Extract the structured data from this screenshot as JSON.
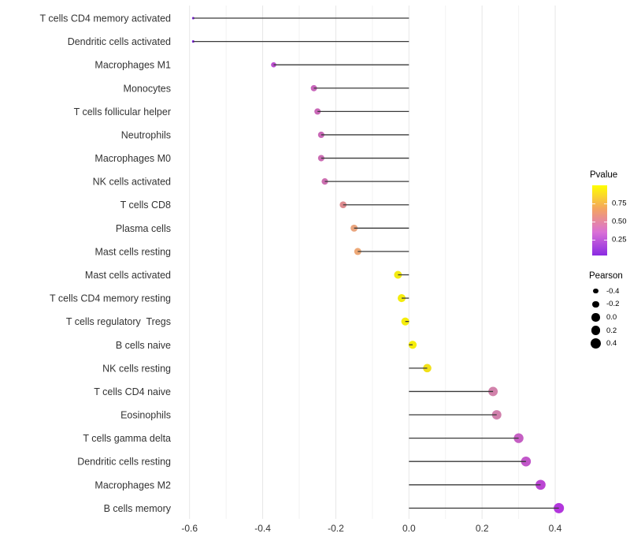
{
  "chart_data": {
    "type": "lollipop",
    "orientation": "horizontal",
    "title": "",
    "xlabel": "",
    "ylabel": "",
    "xlim": [
      -0.655,
      0.465
    ],
    "x_ticks": [
      -0.6,
      -0.4,
      -0.2,
      0.0,
      0.2,
      0.4
    ],
    "x_tick_labels": [
      "-0.6",
      "-0.4",
      "-0.2",
      "0.0",
      "0.2",
      "0.4"
    ],
    "x_minor_ticks": [
      -0.5,
      -0.3,
      -0.1,
      0.1,
      0.3
    ],
    "grid": "vertical major+minor, light gray on white",
    "baseline": 0.0,
    "rows": [
      {
        "label": "T cells CD4 memory activated",
        "pearson": -0.59,
        "pvalue": 0.01,
        "color": "#7E22DC"
      },
      {
        "label": "Dendritic cells activated",
        "pearson": -0.59,
        "pvalue": 0.01,
        "color": "#7E22DC"
      },
      {
        "label": "Macrophages M1",
        "pearson": -0.37,
        "pvalue": 0.09,
        "color": "#BC4FD0"
      },
      {
        "label": "Monocytes",
        "pearson": -0.26,
        "pvalue": 0.21,
        "color": "#C765BA"
      },
      {
        "label": "T cells follicular helper",
        "pearson": -0.25,
        "pvalue": 0.23,
        "color": "#C968B7"
      },
      {
        "label": "Neutrophils",
        "pearson": -0.24,
        "pvalue": 0.23,
        "color": "#C968B7"
      },
      {
        "label": "Macrophages M0",
        "pearson": -0.24,
        "pvalue": 0.24,
        "color": "#CB6CB3"
      },
      {
        "label": "NK cells activated",
        "pearson": -0.23,
        "pvalue": 0.25,
        "color": "#CC6FB0"
      },
      {
        "label": "T cells CD8",
        "pearson": -0.18,
        "pvalue": 0.4,
        "color": "#DD8B8F"
      },
      {
        "label": "Plasma cells",
        "pearson": -0.15,
        "pvalue": 0.5,
        "color": "#EAA57E"
      },
      {
        "label": "Mast cells resting",
        "pearson": -0.14,
        "pvalue": 0.52,
        "color": "#EDA877"
      },
      {
        "label": "Mast cells activated",
        "pearson": -0.03,
        "pvalue": 0.91,
        "color": "#F3EB12"
      },
      {
        "label": "T cells CD4 memory resting",
        "pearson": -0.02,
        "pvalue": 0.93,
        "color": "#F4EC0E"
      },
      {
        "label": "T cells regulatory  Tregs",
        "pearson": -0.01,
        "pvalue": 0.95,
        "color": "#F5ED0B"
      },
      {
        "label": "B cells naive",
        "pearson": 0.01,
        "pvalue": 0.95,
        "color": "#F5ED0B"
      },
      {
        "label": "NK cells resting",
        "pearson": 0.05,
        "pvalue": 0.86,
        "color": "#F1E018"
      },
      {
        "label": "T cells CD4 naive",
        "pearson": 0.23,
        "pvalue": 0.3,
        "color": "#D282AB"
      },
      {
        "label": "Eosinophils",
        "pearson": 0.24,
        "pvalue": 0.29,
        "color": "#D180AC"
      },
      {
        "label": "T cells gamma delta",
        "pearson": 0.3,
        "pvalue": 0.16,
        "color": "#C55FC3"
      },
      {
        "label": "Dendritic cells resting",
        "pearson": 0.32,
        "pvalue": 0.14,
        "color": "#C156C9"
      },
      {
        "label": "Macrophages M2",
        "pearson": 0.36,
        "pvalue": 0.1,
        "color": "#BB46D3"
      },
      {
        "label": "B cells memory",
        "pearson": 0.41,
        "pvalue": 0.05,
        "color": "#B236DC"
      }
    ],
    "stem_color": "#3A3A3A",
    "axis_text_color": "#333333",
    "grid_major_color": "#E7E7E7",
    "grid_minor_color": "#F2F2F2"
  },
  "legend_pvalue": {
    "title": "Pvalue",
    "tick_labels": [
      "0.75",
      "0.50",
      "0.25"
    ],
    "tick_values": [
      0.75,
      0.5,
      0.25
    ],
    "tick_positions_pct": [
      26,
      52,
      78
    ],
    "gradient_stops_bottom_to_top": [
      "#8A2BE2",
      "#DA70D6",
      "#F4A460",
      "#FFFF00"
    ]
  },
  "legend_pearson": {
    "title": "Pearson",
    "dot_color": "#000000",
    "entries": [
      {
        "label": "-0.4",
        "value": -0.4
      },
      {
        "label": "-0.2",
        "value": -0.2
      },
      {
        "label": "0.0",
        "value": 0.0
      },
      {
        "label": "0.2",
        "value": 0.2
      },
      {
        "label": "0.4",
        "value": 0.4
      }
    ]
  }
}
